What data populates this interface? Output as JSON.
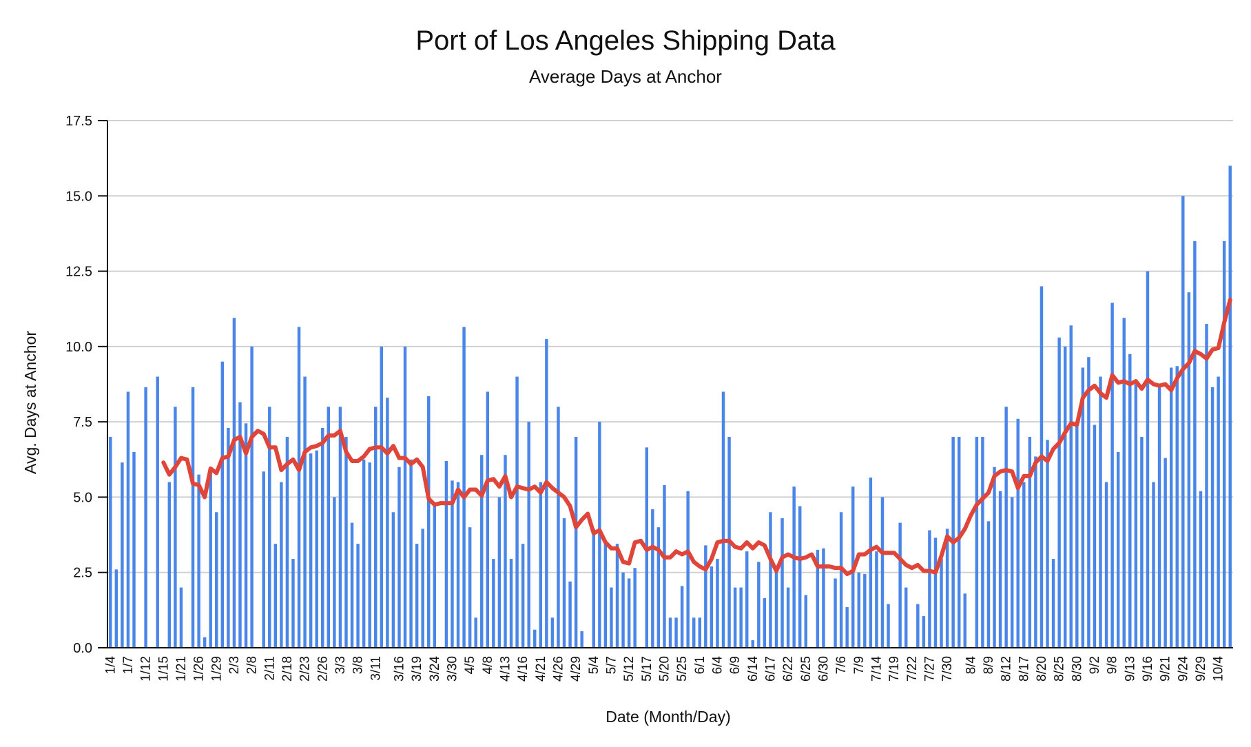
{
  "chart_data": {
    "type": "bar",
    "title": "Port of Los Angeles Shipping Data",
    "subtitle": "Average Days at Anchor",
    "xlabel": "Date (Month/Day)",
    "ylabel": "Avg. Days at Anchor",
    "ylim": [
      0,
      17.5
    ],
    "yticks": [
      "0.0",
      "2.5",
      "5.0",
      "7.5",
      "10.0",
      "12.5",
      "15.0",
      "17.5"
    ],
    "grid": true,
    "x_tick_labels": [
      "1/4",
      "1/7",
      "1/12",
      "1/15",
      "1/21",
      "1/26",
      "1/29",
      "2/3",
      "2/8",
      "2/11",
      "2/18",
      "2/23",
      "2/26",
      "3/3",
      "3/8",
      "3/11",
      "3/16",
      "3/19",
      "3/24",
      "3/30",
      "4/5",
      "4/8",
      "4/13",
      "4/16",
      "4/21",
      "4/26",
      "4/29",
      "5/4",
      "5/7",
      "5/12",
      "5/17",
      "5/20",
      "5/25",
      "6/1",
      "6/4",
      "6/9",
      "6/14",
      "6/17",
      "6/22",
      "6/25",
      "6/30",
      "7/6",
      "7/9",
      "7/14",
      "7/19",
      "7/22",
      "7/27",
      "7/30",
      "8/4",
      "8/9",
      "8/12",
      "8/17",
      "8/20",
      "8/25",
      "8/30",
      "9/2",
      "9/8",
      "9/13",
      "9/16",
      "9/21",
      "9/24",
      "9/29",
      "10/4"
    ],
    "series": [
      {
        "type": "bar",
        "color": "#4a86e8",
        "values": [
          7.0,
          2.6,
          6.15,
          8.5,
          6.5,
          0,
          8.65,
          0,
          9.0,
          0,
          5.5,
          8.0,
          2.0,
          0,
          8.65,
          5.75,
          0.35,
          6.0,
          4.5,
          9.5,
          7.3,
          10.95,
          8.15,
          7.45,
          10.0,
          0,
          5.85,
          8.0,
          3.45,
          5.5,
          7.0,
          2.95,
          10.65,
          9.0,
          6.45,
          6.55,
          7.3,
          8.0,
          5.0,
          8.0,
          7.0,
          4.15,
          3.45,
          6.25,
          6.15,
          8.0,
          10.0,
          8.3,
          4.5,
          6.0,
          10.0,
          6.25,
          3.45,
          3.95,
          8.35,
          4.75,
          0,
          6.2,
          5.55,
          5.5,
          10.65,
          4.0,
          1.0,
          6.4,
          8.5,
          2.95,
          5.0,
          6.4,
          2.95,
          9.0,
          3.45,
          7.5,
          0.6,
          5.5,
          10.25,
          1.0,
          8.0,
          4.3,
          2.2,
          7.0,
          0.55,
          0,
          3.95,
          7.5,
          3.45,
          2.0,
          3.45,
          2.5,
          2.3,
          2.65,
          0,
          6.65,
          4.6,
          4.0,
          5.4,
          1.0,
          1.0,
          2.05,
          5.2,
          1.0,
          1.0,
          3.4,
          2.7,
          2.95,
          8.5,
          7.0,
          2.0,
          2.0,
          3.2,
          0.25,
          2.85,
          1.65,
          4.5,
          2.5,
          4.3,
          2.0,
          5.35,
          4.7,
          1.75,
          0,
          3.25,
          3.3,
          0,
          2.3,
          4.5,
          1.35,
          5.35,
          2.5,
          2.45,
          5.65,
          3.2,
          5.0,
          1.45,
          0,
          4.15,
          2.0,
          0,
          1.45,
          1.05,
          3.9,
          3.65,
          2.95,
          3.95,
          7.0,
          7.0,
          1.8,
          0,
          7.0,
          7.0,
          4.2,
          6.0,
          5.2,
          8.0,
          5.0,
          7.6,
          5.5,
          7.0,
          6.35,
          12.0,
          6.9,
          2.95,
          10.3,
          10.0,
          10.7,
          7.5,
          9.3,
          9.65,
          7.4,
          9.0,
          5.5,
          11.45,
          6.5,
          10.95,
          9.75,
          8.75,
          7.0,
          12.5,
          5.5,
          8.7,
          6.3,
          9.3,
          9.35,
          15.0,
          11.8,
          13.5,
          5.2,
          10.75,
          8.65,
          9.0,
          13.5,
          16.0
        ]
      },
      {
        "type": "line",
        "name": "",
        "color": "#e0453a",
        "start_index": 9,
        "values": [
          6.15,
          5.75,
          6.0,
          6.3,
          6.25,
          5.45,
          5.4,
          5.0,
          5.95,
          5.8,
          6.3,
          6.35,
          6.9,
          7.0,
          6.45,
          7.0,
          7.2,
          7.1,
          6.65,
          6.65,
          5.9,
          6.1,
          6.25,
          5.9,
          6.5,
          6.65,
          6.7,
          6.8,
          7.05,
          7.05,
          7.2,
          6.5,
          6.2,
          6.2,
          6.35,
          6.6,
          6.65,
          6.65,
          6.45,
          6.7,
          6.3,
          6.3,
          6.1,
          6.25,
          6.0,
          4.95,
          4.75,
          4.8,
          4.8,
          4.8,
          5.25,
          5.0,
          5.25,
          5.25,
          5.05,
          5.55,
          5.6,
          5.35,
          5.7,
          5.0,
          5.35,
          5.3,
          5.25,
          5.35,
          5.15,
          5.5,
          5.3,
          5.15,
          5.0,
          4.7,
          4.0,
          4.25,
          4.45,
          3.8,
          3.9,
          3.5,
          3.3,
          3.3,
          2.85,
          2.8,
          3.5,
          3.55,
          3.25,
          3.35,
          3.25,
          3.0,
          3.0,
          3.2,
          3.1,
          3.2,
          2.85,
          2.7,
          2.6,
          2.95,
          3.5,
          3.55,
          3.55,
          3.35,
          3.3,
          3.5,
          3.3,
          3.5,
          3.4,
          2.95,
          2.55,
          3.0,
          3.1,
          3.0,
          2.95,
          3.0,
          3.1,
          2.7,
          2.7,
          2.7,
          2.65,
          2.65,
          2.45,
          2.55,
          3.1,
          3.1,
          3.25,
          3.35,
          3.15,
          3.15,
          3.15,
          2.95,
          2.75,
          2.65,
          2.75,
          2.55,
          2.55,
          2.5,
          3.05,
          3.7,
          3.5,
          3.65,
          3.95,
          4.4,
          4.75,
          4.95,
          5.15,
          5.7,
          5.85,
          5.9,
          5.85,
          5.3,
          5.7,
          5.7,
          6.15,
          6.35,
          6.2,
          6.6,
          6.8,
          7.15,
          7.45,
          7.4,
          8.3,
          8.55,
          8.7,
          8.45,
          8.3,
          9.05,
          8.8,
          8.85,
          8.75,
          8.85,
          8.6,
          8.9,
          8.75,
          8.7,
          8.75,
          8.55,
          8.95,
          9.25,
          9.45,
          9.85,
          9.75,
          9.6,
          9.9,
          9.95,
          10.8,
          11.55
        ]
      }
    ]
  }
}
